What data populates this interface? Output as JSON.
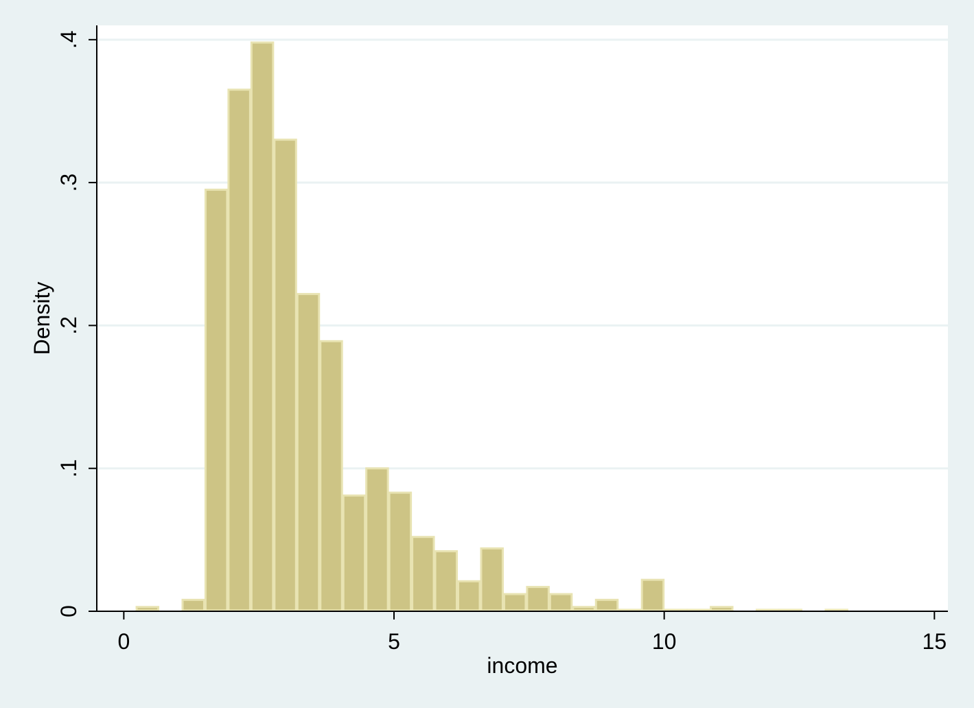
{
  "chart_data": {
    "type": "bar",
    "subtype": "histogram",
    "title": "",
    "xlabel": "income",
    "ylabel": "Density",
    "xlim": [
      -0.5,
      15.25
    ],
    "ylim": [
      0,
      0.41
    ],
    "x_ticks": [
      0,
      5,
      10,
      15
    ],
    "x_tick_labels": [
      "0",
      "5",
      "10",
      "15"
    ],
    "y_ticks": [
      0,
      0.1,
      0.2,
      0.3,
      0.4
    ],
    "y_tick_labels": [
      "0",
      ".1",
      ".2",
      ".3",
      ".4"
    ],
    "grid": "horizontal",
    "legend": "none",
    "bin_width": 0.425,
    "bins": [
      {
        "start": 0.225,
        "density": 0.003
      },
      {
        "start": 0.65,
        "density": 0.0
      },
      {
        "start": 1.075,
        "density": 0.008
      },
      {
        "start": 1.5,
        "density": 0.295
      },
      {
        "start": 1.925,
        "density": 0.365
      },
      {
        "start": 2.35,
        "density": 0.398
      },
      {
        "start": 2.775,
        "density": 0.33
      },
      {
        "start": 3.2,
        "density": 0.222
      },
      {
        "start": 3.625,
        "density": 0.189
      },
      {
        "start": 4.05,
        "density": 0.081
      },
      {
        "start": 4.475,
        "density": 0.1
      },
      {
        "start": 4.9,
        "density": 0.083
      },
      {
        "start": 5.325,
        "density": 0.052
      },
      {
        "start": 5.75,
        "density": 0.042
      },
      {
        "start": 6.175,
        "density": 0.021
      },
      {
        "start": 6.6,
        "density": 0.044
      },
      {
        "start": 7.025,
        "density": 0.012
      },
      {
        "start": 7.45,
        "density": 0.017
      },
      {
        "start": 7.875,
        "density": 0.012
      },
      {
        "start": 8.3,
        "density": 0.003
      },
      {
        "start": 8.725,
        "density": 0.008
      },
      {
        "start": 9.15,
        "density": 0.001
      },
      {
        "start": 9.575,
        "density": 0.022
      },
      {
        "start": 10.0,
        "density": 0.001
      },
      {
        "start": 10.425,
        "density": 0.001
      },
      {
        "start": 10.85,
        "density": 0.003
      },
      {
        "start": 11.275,
        "density": 0.0
      },
      {
        "start": 11.7,
        "density": 0.001
      },
      {
        "start": 12.125,
        "density": 0.001
      },
      {
        "start": 12.55,
        "density": 0.0
      },
      {
        "start": 12.975,
        "density": 0.001
      }
    ],
    "colors": {
      "bar_fill": "#cdc485",
      "bar_edge": "#e8e3b2",
      "plot_background": "#ffffff",
      "outer_background": "#eaf2f3",
      "grid": "#eaf2f3",
      "axis": "#000000"
    }
  }
}
